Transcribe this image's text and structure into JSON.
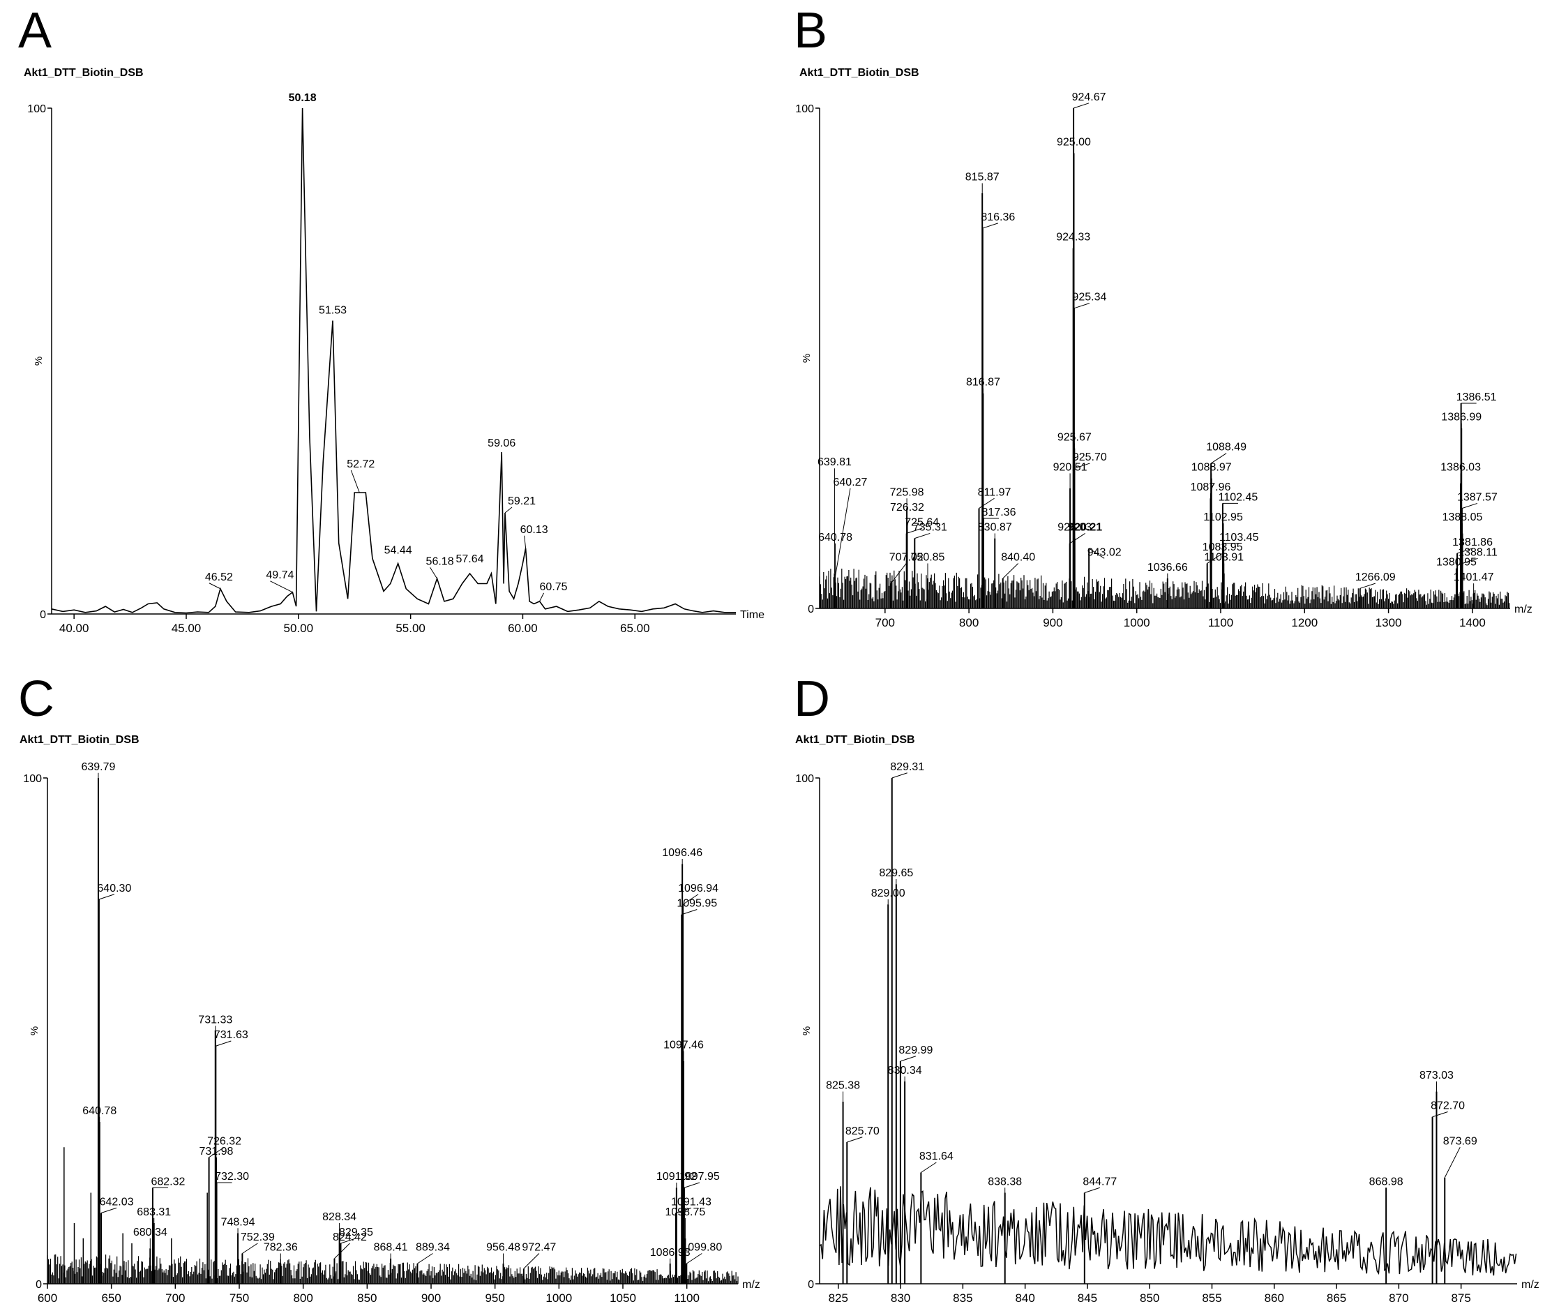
{
  "chart_data": [
    {
      "panel": "A",
      "type": "line",
      "title": "Akt1_DTT_Biotin_DSB",
      "xlabel": "Time",
      "ylabel": "%",
      "xlim": [
        39.0,
        69.5
      ],
      "ylim": [
        0,
        100
      ],
      "xticks": [
        40.0,
        45.0,
        50.0,
        55.0,
        60.0,
        65.0
      ],
      "xtick_labels": [
        "40.00",
        "45.00",
        "50.00",
        "55.00",
        "60.00",
        "65.00"
      ],
      "yticks": [
        0,
        100
      ],
      "ytick_labels": [
        "0",
        "100"
      ],
      "series": [
        {
          "x": [
            39.0,
            39.5,
            40.0,
            40.5,
            41.0,
            41.4,
            41.8,
            42.2,
            42.6,
            43.0,
            43.3,
            43.7,
            44.0,
            44.5,
            45.0,
            45.5,
            46.0,
            46.3,
            46.52,
            46.8,
            47.2,
            47.8,
            48.3,
            48.8,
            49.2,
            49.5,
            49.74,
            49.9,
            50.18,
            50.5,
            50.8,
            51.1,
            51.53,
            51.8,
            52.2,
            52.5,
            52.72,
            53.0,
            53.3,
            53.8,
            54.1,
            54.44,
            54.8,
            55.3,
            55.8,
            56.18,
            56.5,
            56.9,
            57.3,
            57.64,
            58.0,
            58.4,
            58.6,
            58.8,
            59.06,
            59.15,
            59.21,
            59.4,
            59.6,
            59.8,
            60.0,
            60.13,
            60.3,
            60.5,
            60.75,
            61.0,
            61.5,
            62.0,
            62.5,
            63.0,
            63.4,
            63.8,
            64.3,
            64.8,
            65.3,
            65.8,
            66.3,
            66.8,
            67.2,
            67.6,
            68.0,
            68.5,
            69.0,
            69.5
          ],
          "values": [
            1.0,
            0.5,
            0.8,
            0.3,
            0.6,
            1.5,
            0.4,
            0.9,
            0.3,
            1.2,
            2.0,
            2.2,
            1.0,
            0.3,
            0.2,
            0.4,
            0.3,
            1.5,
            5.0,
            2.5,
            0.4,
            0.3,
            0.6,
            1.5,
            2.0,
            3.5,
            4.3,
            1.5,
            100.0,
            35.0,
            0.5,
            30.0,
            58.0,
            14.0,
            3.0,
            24.0,
            24.0,
            24.0,
            11.0,
            4.5,
            6.0,
            10.0,
            5.0,
            3.0,
            2.0,
            7.0,
            2.5,
            3.0,
            6.0,
            8.0,
            6.0,
            6.0,
            8.0,
            2.0,
            32.0,
            6.0,
            20.0,
            4.5,
            3.0,
            6.0,
            10.0,
            13.0,
            2.5,
            2.0,
            2.5,
            1.0,
            1.5,
            0.5,
            0.8,
            1.2,
            2.5,
            1.5,
            1.0,
            0.8,
            0.5,
            1.0,
            1.2,
            2.0,
            1.0,
            0.6,
            0.3,
            0.6,
            0.3,
            0.3
          ]
        }
      ],
      "peak_labels": [
        {
          "x": 50.18,
          "y": 100,
          "text": "50.18",
          "dx": 0,
          "dy": -10,
          "bold": true
        },
        {
          "x": 51.53,
          "y": 58,
          "text": "51.53",
          "dx": 0,
          "dy": -10
        },
        {
          "x": 52.72,
          "y": 24,
          "text": "52.72",
          "dx": 2,
          "dy": -36
        },
        {
          "x": 54.44,
          "y": 10,
          "text": "54.44",
          "dx": 0,
          "dy": -14
        },
        {
          "x": 56.18,
          "y": 7,
          "text": "56.18",
          "dx": 4,
          "dy": -20
        },
        {
          "x": 57.64,
          "y": 8,
          "text": "57.64",
          "dx": 0,
          "dy": -16
        },
        {
          "x": 59.06,
          "y": 32,
          "text": "59.06",
          "dx": 0,
          "dy": -8
        },
        {
          "x": 59.21,
          "y": 20,
          "text": "59.21",
          "dx": 24,
          "dy": -12
        },
        {
          "x": 60.13,
          "y": 13,
          "text": "60.13",
          "dx": 12,
          "dy": -22
        },
        {
          "x": 60.75,
          "y": 2.5,
          "text": "60.75",
          "dx": 20,
          "dy": -16
        },
        {
          "x": 49.74,
          "y": 4.3,
          "text": "49.74",
          "dx": -18,
          "dy": -20
        },
        {
          "x": 46.52,
          "y": 5,
          "text": "46.52",
          "dx": -2,
          "dy": -12
        }
      ]
    },
    {
      "panel": "B",
      "type": "bar",
      "title": "Akt1_DTT_Biotin_DSB",
      "xlabel": "m/z",
      "ylabel": "%",
      "xlim": [
        622,
        1445
      ],
      "ylim": [
        0,
        100
      ],
      "noise_level": 4,
      "xticks": [
        700,
        800,
        900,
        1000,
        1100,
        1200,
        1300,
        1400
      ],
      "xtick_labels": [
        "700",
        "800",
        "900",
        "1000",
        "1100",
        "1200",
        "1300",
        "1400"
      ],
      "yticks": [
        0,
        100
      ],
      "ytick_labels": [
        "0",
        "100"
      ],
      "peaks": [
        {
          "mz": 639.81,
          "intensity": 7,
          "label": "639.81",
          "ly": 28
        },
        {
          "mz": 640.27,
          "intensity": 6,
          "label": "640.27",
          "ly": 24
        },
        {
          "mz": 640.78,
          "intensity": 5,
          "label": "640.78",
          "ly": 13
        },
        {
          "mz": 707.02,
          "intensity": 5,
          "label": "707.02",
          "ly": 9
        },
        {
          "mz": 725.98,
          "intensity": 20,
          "label": "725.98",
          "ly": 22
        },
        {
          "mz": 725.64,
          "intensity": 15,
          "label": "725.64",
          "ly": 16
        },
        {
          "mz": 726.32,
          "intensity": 17,
          "label": "726.32",
          "ly": 19
        },
        {
          "mz": 735.31,
          "intensity": 14,
          "label": "735.31",
          "ly": 15
        },
        {
          "mz": 750.85,
          "intensity": 6,
          "label": "750.85",
          "ly": 9
        },
        {
          "mz": 811.97,
          "intensity": 20,
          "label": "811.97",
          "ly": 22
        },
        {
          "mz": 815.87,
          "intensity": 83,
          "label": "815.87",
          "ly": 85
        },
        {
          "mz": 816.36,
          "intensity": 76,
          "label": "816.36",
          "ly": 77
        },
        {
          "mz": 816.87,
          "intensity": 43,
          "label": "816.87",
          "ly": 44
        },
        {
          "mz": 817.36,
          "intensity": 18,
          "label": "817.36",
          "ly": 18
        },
        {
          "mz": 830.87,
          "intensity": 14,
          "label": "830.87",
          "ly": 15
        },
        {
          "mz": 840.4,
          "intensity": 6,
          "label": "840.40",
          "ly": 9
        },
        {
          "mz": 920.51,
          "intensity": 24,
          "label": "920.51",
          "ly": 27
        },
        {
          "mz": 920.21,
          "intensity": 13,
          "label": "920.21",
          "ly": 15,
          "bold": true
        },
        {
          "mz": 924.33,
          "intensity": 72,
          "label": "924.33",
          "ly": 73
        },
        {
          "mz": 924.67,
          "intensity": 100,
          "label": "924.67",
          "ly": 101
        },
        {
          "mz": 925.0,
          "intensity": 91,
          "label": "925.00",
          "ly": 92
        },
        {
          "mz": 925.34,
          "intensity": 60,
          "label": "925.34",
          "ly": 61
        },
        {
          "mz": 925.67,
          "intensity": 32,
          "label": "925.67",
          "ly": 33
        },
        {
          "mz": 925.7,
          "intensity": 28,
          "label": "925.70",
          "ly": 29
        },
        {
          "mz": 926.03,
          "intensity": 14,
          "label": "926.03",
          "ly": 15
        },
        {
          "mz": 943.02,
          "intensity": 12,
          "label": "943.02",
          "ly": 10
        },
        {
          "mz": 1036.66,
          "intensity": 6,
          "label": "1036.66",
          "ly": 7
        },
        {
          "mz": 1083.95,
          "intensity": 9,
          "label": "1083.95",
          "ly": 11
        },
        {
          "mz": 1087.96,
          "intensity": 22,
          "label": "1087.96",
          "ly": 23
        },
        {
          "mz": 1088.49,
          "intensity": 29,
          "label": "1088.49",
          "ly": 31
        },
        {
          "mz": 1088.97,
          "intensity": 26,
          "label": "1088.97",
          "ly": 27
        },
        {
          "mz": 1102.45,
          "intensity": 21,
          "label": "1102.45",
          "ly": 21
        },
        {
          "mz": 1102.95,
          "intensity": 17,
          "label": "1102.95",
          "ly": 17
        },
        {
          "mz": 1103.45,
          "intensity": 13,
          "label": "1103.45",
          "ly": 13
        },
        {
          "mz": 1103.91,
          "intensity": 7,
          "label": "1103.91",
          "ly": 9
        },
        {
          "mz": 1266.09,
          "intensity": 4,
          "label": "1266.09",
          "ly": 5
        },
        {
          "mz": 1380.95,
          "intensity": 8,
          "label": "1380.95",
          "ly": 8
        },
        {
          "mz": 1381.86,
          "intensity": 11,
          "label": "1381.86",
          "ly": 12
        },
        {
          "mz": 1386.03,
          "intensity": 25,
          "label": "1386.03",
          "ly": 27
        },
        {
          "mz": 1386.51,
          "intensity": 41,
          "label": "1386.51",
          "ly": 41
        },
        {
          "mz": 1386.99,
          "intensity": 36,
          "label": "1386.99",
          "ly": 37
        },
        {
          "mz": 1387.57,
          "intensity": 20,
          "label": "1387.57",
          "ly": 21
        },
        {
          "mz": 1388.05,
          "intensity": 15,
          "label": "1388.05",
          "ly": 17
        },
        {
          "mz": 1388.11,
          "intensity": 9,
          "label": "1388.11",
          "ly": 10
        },
        {
          "mz": 1401.47,
          "intensity": 3,
          "label": "1401.47",
          "ly": 5
        }
      ]
    },
    {
      "panel": "C",
      "type": "bar",
      "title": "Akt1_DTT_Biotin_DSB",
      "xlabel": "m/z",
      "ylabel": "%",
      "xlim": [
        600,
        1140
      ],
      "ylim": [
        0,
        100
      ],
      "noise_level": 3,
      "xticks": [
        600,
        650,
        700,
        750,
        800,
        850,
        900,
        950,
        1000,
        1050,
        1100
      ],
      "xtick_labels": [
        "600",
        "650",
        "700",
        "750",
        "800",
        "850",
        "900",
        "950",
        "1000",
        "1050",
        "1100"
      ],
      "yticks": [
        0,
        100
      ],
      "ytick_labels": [
        "0",
        "100"
      ],
      "peaks": [
        {
          "mz": 639.79,
          "intensity": 100,
          "label": "639.79",
          "ly": 101
        },
        {
          "mz": 640.3,
          "intensity": 76,
          "label": "640.30",
          "ly": 77
        },
        {
          "mz": 640.78,
          "intensity": 32,
          "label": "640.78",
          "ly": 33
        },
        {
          "mz": 642.03,
          "intensity": 14,
          "label": "642.03",
          "ly": 15
        },
        {
          "mz": 680.34,
          "intensity": 7,
          "label": "680.34",
          "ly": 9
        },
        {
          "mz": 682.32,
          "intensity": 19,
          "label": "682.32",
          "ly": 19
        },
        {
          "mz": 683.31,
          "intensity": 12,
          "label": "683.31",
          "ly": 13
        },
        {
          "mz": 726.32,
          "intensity": 25,
          "label": "726.32",
          "ly": 27
        },
        {
          "mz": 731.33,
          "intensity": 50,
          "label": "731.33",
          "ly": 51
        },
        {
          "mz": 731.63,
          "intensity": 47,
          "label": "731.63",
          "ly": 48
        },
        {
          "mz": 731.98,
          "intensity": 25,
          "label": "731.98",
          "ly": 25
        },
        {
          "mz": 732.3,
          "intensity": 20,
          "label": "732.30",
          "ly": 20
        },
        {
          "mz": 748.94,
          "intensity": 10,
          "label": "748.94",
          "ly": 11
        },
        {
          "mz": 752.39,
          "intensity": 6,
          "label": "752.39",
          "ly": 8
        },
        {
          "mz": 782.36,
          "intensity": 4,
          "label": "782.36",
          "ly": 6
        },
        {
          "mz": 824.42,
          "intensity": 5,
          "label": "824.42",
          "ly": 8
        },
        {
          "mz": 828.34,
          "intensity": 10,
          "label": "828.34",
          "ly": 12
        },
        {
          "mz": 829.35,
          "intensity": 8,
          "label": "829.35",
          "ly": 9
        },
        {
          "mz": 868.41,
          "intensity": 5,
          "label": "868.41",
          "ly": 6
        },
        {
          "mz": 889.34,
          "intensity": 4,
          "label": "889.34",
          "ly": 6
        },
        {
          "mz": 956.48,
          "intensity": 4,
          "label": "956.48",
          "ly": 6
        },
        {
          "mz": 972.47,
          "intensity": 3,
          "label": "972.47",
          "ly": 6
        },
        {
          "mz": 1086.93,
          "intensity": 4,
          "label": "1086.93",
          "ly": 5
        },
        {
          "mz": 1091.43,
          "intensity": 14,
          "label": "1091.43",
          "ly": 15
        },
        {
          "mz": 1091.92,
          "intensity": 19,
          "label": "1091.92",
          "ly": 20
        },
        {
          "mz": 1095.95,
          "intensity": 73,
          "label": "1095.95",
          "ly": 74
        },
        {
          "mz": 1096.46,
          "intensity": 83,
          "label": "1096.46",
          "ly": 84
        },
        {
          "mz": 1096.94,
          "intensity": 75,
          "label": "1096.94",
          "ly": 77
        },
        {
          "mz": 1097.46,
          "intensity": 44,
          "label": "1097.46",
          "ly": 46
        },
        {
          "mz": 1097.95,
          "intensity": 19,
          "label": "1097.95",
          "ly": 20
        },
        {
          "mz": 1098.75,
          "intensity": 9,
          "label": "1098.75",
          "ly": 13
        },
        {
          "mz": 1099.8,
          "intensity": 4,
          "label": "1099.80",
          "ly": 6
        }
      ],
      "extra_spikes": [
        {
          "mz": 613,
          "intensity": 27
        },
        {
          "mz": 621,
          "intensity": 12
        },
        {
          "mz": 628,
          "intensity": 9
        },
        {
          "mz": 634,
          "intensity": 18
        },
        {
          "mz": 659,
          "intensity": 10
        },
        {
          "mz": 666,
          "intensity": 8
        },
        {
          "mz": 697,
          "intensity": 9
        },
        {
          "mz": 725,
          "intensity": 18
        }
      ]
    },
    {
      "panel": "D",
      "type": "line",
      "title": "Akt1_DTT_Biotin_DSB",
      "xlabel": "m/z",
      "ylabel": "%",
      "xlim": [
        823.5,
        879.5
      ],
      "ylim": [
        0,
        100
      ],
      "noise_level": 10,
      "xticks": [
        825,
        830,
        835,
        840,
        845,
        850,
        855,
        860,
        865,
        870,
        875
      ],
      "xtick_labels": [
        "825",
        "830",
        "835",
        "840",
        "845",
        "850",
        "855",
        "860",
        "865",
        "870",
        "875"
      ],
      "yticks": [
        0,
        100
      ],
      "ytick_labels": [
        "0",
        "100"
      ],
      "peaks": [
        {
          "mz": 825.38,
          "intensity": 36,
          "label": "825.38",
          "ly": 38
        },
        {
          "mz": 825.7,
          "intensity": 28,
          "label": "825.70",
          "ly": 29
        },
        {
          "mz": 829.0,
          "intensity": 75,
          "label": "829.00",
          "ly": 76
        },
        {
          "mz": 829.31,
          "intensity": 100,
          "label": "829.31",
          "ly": 101
        },
        {
          "mz": 829.65,
          "intensity": 79,
          "label": "829.65",
          "ly": 80
        },
        {
          "mz": 829.99,
          "intensity": 44,
          "label": "829.99",
          "ly": 45
        },
        {
          "mz": 830.34,
          "intensity": 40,
          "label": "830.34",
          "ly": 41
        },
        {
          "mz": 831.64,
          "intensity": 22,
          "label": "831.64",
          "ly": 24
        },
        {
          "mz": 838.38,
          "intensity": 18,
          "label": "838.38",
          "ly": 19
        },
        {
          "mz": 844.77,
          "intensity": 18,
          "label": "844.77",
          "ly": 19
        },
        {
          "mz": 868.98,
          "intensity": 19,
          "label": "868.98",
          "ly": 19
        },
        {
          "mz": 872.7,
          "intensity": 33,
          "label": "872.70",
          "ly": 34
        },
        {
          "mz": 873.03,
          "intensity": 38,
          "label": "873.03",
          "ly": 40
        },
        {
          "mz": 873.69,
          "intensity": 21,
          "label": "873.69",
          "ly": 27
        }
      ]
    }
  ]
}
